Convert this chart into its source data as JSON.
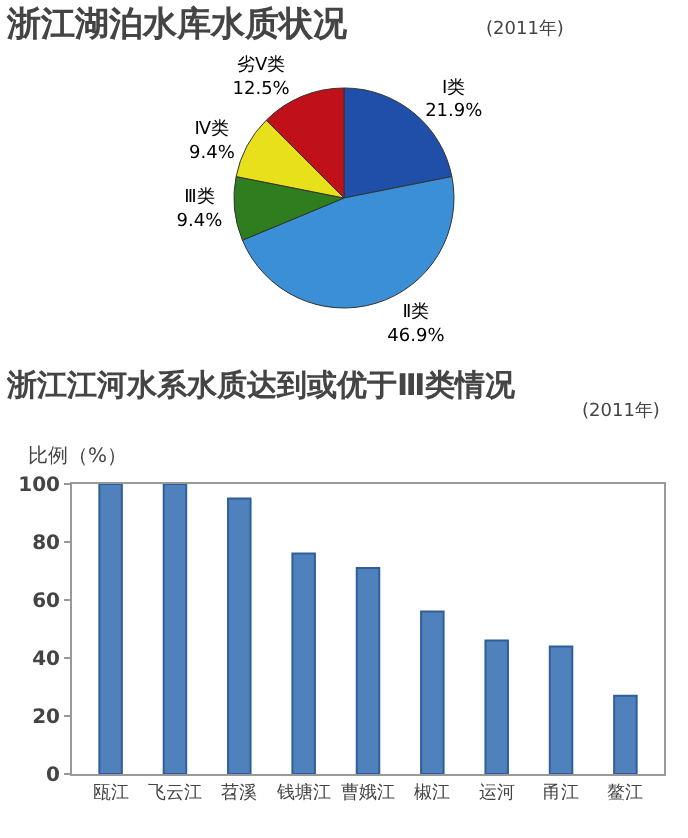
{
  "chart_data": [
    {
      "type": "pie",
      "title": "浙江湖泊水库水质状况",
      "subtitle": "(2011年)",
      "categories": [
        "Ⅰ类",
        "Ⅱ类",
        "Ⅲ类",
        "Ⅳ类",
        "劣Ⅴ类"
      ],
      "values": [
        21.9,
        46.9,
        9.4,
        9.4,
        12.5
      ],
      "value_labels": [
        "21.9%",
        "46.9%",
        "9.4%",
        "9.4%",
        "12.5%"
      ],
      "colors": [
        "#1f4fa8",
        "#3a8fd6",
        "#2e7d1e",
        "#e8e01a",
        "#c0101a"
      ],
      "legend": false
    },
    {
      "type": "bar",
      "title": "浙江江河水系水质达到或优于Ⅲ类情况",
      "subtitle": "(2011年)",
      "ylabel": "比例（%）",
      "categories": [
        "瓯江",
        "飞云江",
        "苕溪",
        "钱塘江",
        "曹娥江",
        "椒江",
        "运河",
        "甬江",
        "鳌江"
      ],
      "values": [
        100,
        100,
        95,
        76,
        71,
        56,
        46,
        44,
        27
      ],
      "color": "#4f81bd",
      "ylim": [
        0,
        100
      ],
      "yticks": [
        0,
        20,
        40,
        60,
        80,
        100
      ],
      "grid": false,
      "legend": false
    }
  ]
}
